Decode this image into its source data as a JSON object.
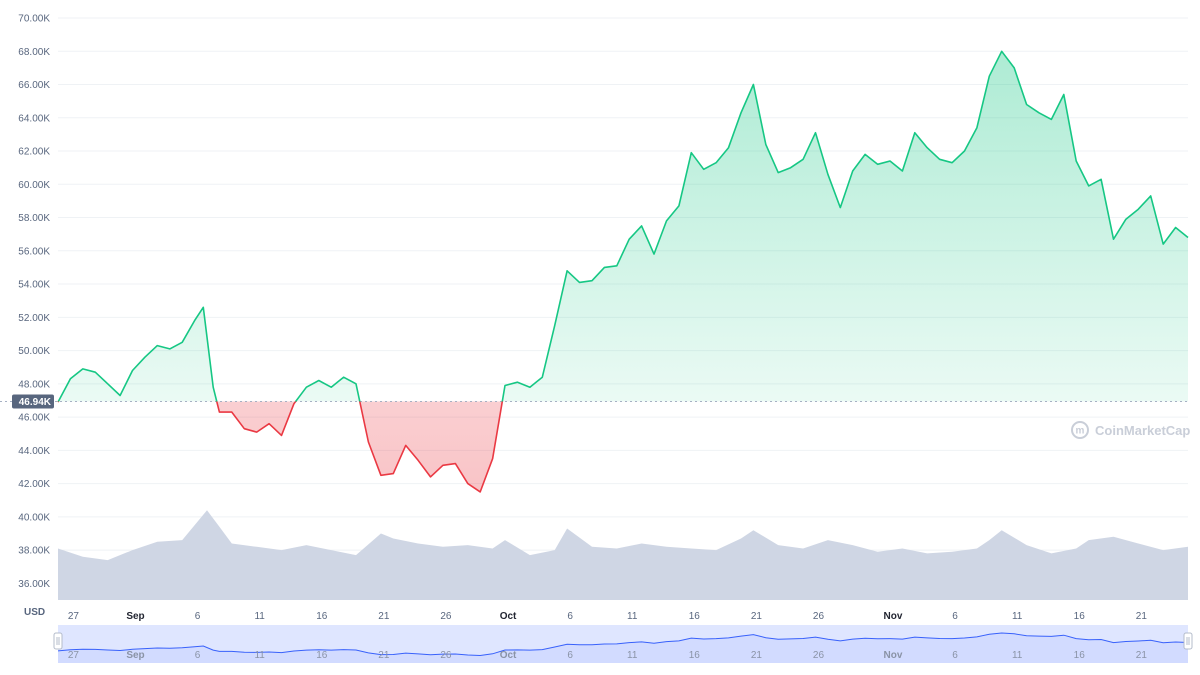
{
  "chart_data": {
    "type": "area",
    "currency_label": "USD",
    "reference_value": 46940,
    "reference_label": "46.94K",
    "watermark": "CoinMarketCap",
    "colors": {
      "up_line": "#16c784",
      "down_line": "#ea3943",
      "volume_fill": "#cfd6e4",
      "navigator_fill": "#dfe6ff",
      "navigator_line": "#3861fb"
    },
    "y_axis": {
      "min": 35000,
      "max": 70000,
      "ticks": [
        36000,
        38000,
        40000,
        42000,
        44000,
        46000,
        48000,
        50000,
        52000,
        54000,
        56000,
        58000,
        60000,
        62000,
        64000,
        66000,
        68000,
        70000
      ],
      "tick_labels": [
        "36.00K",
        "38.00K",
        "40.00K",
        "42.00K",
        "44.00K",
        "46.00K",
        "48.00K",
        "50.00K",
        "52.00K",
        "54.00K",
        "56.00K",
        "58.00K",
        "60.00K",
        "62.00K",
        "64.00K",
        "66.00K",
        "68.00K",
        "70.00K"
      ]
    },
    "x_axis": {
      "min": "2021-08-26",
      "max": "2021-11-24",
      "ticks": [
        {
          "date": "2021-08-27",
          "label": "27",
          "month": false
        },
        {
          "date": "2021-09-01",
          "label": "Sep",
          "month": true
        },
        {
          "date": "2021-09-06",
          "label": "6",
          "month": false
        },
        {
          "date": "2021-09-11",
          "label": "11",
          "month": false
        },
        {
          "date": "2021-09-16",
          "label": "16",
          "month": false
        },
        {
          "date": "2021-09-21",
          "label": "21",
          "month": false
        },
        {
          "date": "2021-09-26",
          "label": "26",
          "month": false
        },
        {
          "date": "2021-10-01",
          "label": "Oct",
          "month": true
        },
        {
          "date": "2021-10-06",
          "label": "6",
          "month": false
        },
        {
          "date": "2021-10-11",
          "label": "11",
          "month": false
        },
        {
          "date": "2021-10-16",
          "label": "16",
          "month": false
        },
        {
          "date": "2021-10-21",
          "label": "21",
          "month": false
        },
        {
          "date": "2021-10-26",
          "label": "26",
          "month": false
        },
        {
          "date": "2021-11-01",
          "label": "Nov",
          "month": true
        },
        {
          "date": "2021-11-06",
          "label": "6",
          "month": false
        },
        {
          "date": "2021-11-11",
          "label": "11",
          "month": false
        },
        {
          "date": "2021-11-16",
          "label": "16",
          "month": false
        },
        {
          "date": "2021-11-21",
          "label": "21",
          "month": false
        }
      ]
    },
    "series": [
      {
        "type": "line",
        "points": [
          [
            "2021-08-26",
            46900
          ],
          [
            "2021-08-27",
            48300
          ],
          [
            "2021-08-28",
            48900
          ],
          [
            "2021-08-29",
            48700
          ],
          [
            "2021-08-30",
            48000
          ],
          [
            "2021-08-31",
            47300
          ],
          [
            "2021-09-01",
            48800
          ],
          [
            "2021-09-02",
            49600
          ],
          [
            "2021-09-03",
            50300
          ],
          [
            "2021-09-04",
            50100
          ],
          [
            "2021-09-05",
            50500
          ],
          [
            "2021-09-06",
            51800
          ],
          [
            "2021-09-06.7",
            52600
          ],
          [
            "2021-09-07.5",
            47800
          ],
          [
            "2021-09-08",
            46300
          ],
          [
            "2021-09-09",
            46300
          ],
          [
            "2021-09-10",
            45300
          ],
          [
            "2021-09-11",
            45100
          ],
          [
            "2021-09-12",
            45600
          ],
          [
            "2021-09-13",
            44900
          ],
          [
            "2021-09-14",
            46800
          ],
          [
            "2021-09-15",
            47800
          ],
          [
            "2021-09-16",
            48200
          ],
          [
            "2021-09-17",
            47800
          ],
          [
            "2021-09-18",
            48400
          ],
          [
            "2021-09-19",
            48000
          ],
          [
            "2021-09-20",
            44500
          ],
          [
            "2021-09-21",
            42500
          ],
          [
            "2021-09-22",
            42600
          ],
          [
            "2021-09-23",
            44300
          ],
          [
            "2021-09-24",
            43400
          ],
          [
            "2021-09-25",
            42400
          ],
          [
            "2021-09-26",
            43100
          ],
          [
            "2021-09-27",
            43200
          ],
          [
            "2021-09-28",
            42000
          ],
          [
            "2021-09-29",
            41500
          ],
          [
            "2021-09-30",
            43500
          ],
          [
            "2021-10-01",
            47900
          ],
          [
            "2021-10-02",
            48100
          ],
          [
            "2021-10-03",
            47800
          ],
          [
            "2021-10-04",
            48400
          ],
          [
            "2021-10-05",
            51500
          ],
          [
            "2021-10-06",
            54800
          ],
          [
            "2021-10-07",
            54100
          ],
          [
            "2021-10-08",
            54200
          ],
          [
            "2021-10-09",
            55000
          ],
          [
            "2021-10-10",
            55100
          ],
          [
            "2021-10-11",
            56700
          ],
          [
            "2021-10-12",
            57500
          ],
          [
            "2021-10-13",
            55800
          ],
          [
            "2021-10-14",
            57800
          ],
          [
            "2021-10-15",
            58700
          ],
          [
            "2021-10-16",
            61900
          ],
          [
            "2021-10-17",
            60900
          ],
          [
            "2021-10-18",
            61300
          ],
          [
            "2021-10-19",
            62200
          ],
          [
            "2021-10-20",
            64300
          ],
          [
            "2021-10-21",
            66000
          ],
          [
            "2021-10-22",
            62400
          ],
          [
            "2021-10-23",
            60700
          ],
          [
            "2021-10-24",
            61000
          ],
          [
            "2021-10-25",
            61500
          ],
          [
            "2021-10-26",
            63100
          ],
          [
            "2021-10-27",
            60600
          ],
          [
            "2021-10-28",
            58600
          ],
          [
            "2021-10-29",
            60800
          ],
          [
            "2021-10-30",
            61800
          ],
          [
            "2021-10-31",
            61200
          ],
          [
            "2021-11-01",
            61400
          ],
          [
            "2021-11-02",
            60800
          ],
          [
            "2021-11-03",
            63100
          ],
          [
            "2021-11-04",
            62200
          ],
          [
            "2021-11-05",
            61500
          ],
          [
            "2021-11-06",
            61300
          ],
          [
            "2021-11-07",
            62000
          ],
          [
            "2021-11-08",
            63400
          ],
          [
            "2021-11-09",
            66500
          ],
          [
            "2021-11-10",
            68000
          ],
          [
            "2021-11-11",
            67000
          ],
          [
            "2021-11-12",
            64800
          ],
          [
            "2021-11-13",
            64300
          ],
          [
            "2021-11-14",
            63900
          ],
          [
            "2021-11-15",
            65400
          ],
          [
            "2021-11-16",
            61400
          ],
          [
            "2021-11-17",
            59900
          ],
          [
            "2021-11-18",
            60300
          ],
          [
            "2021-11-19",
            56700
          ],
          [
            "2021-11-20",
            57900
          ],
          [
            "2021-11-21",
            58500
          ],
          [
            "2021-11-22",
            59300
          ],
          [
            "2021-11-23",
            56400
          ],
          [
            "2021-11-24",
            57400
          ],
          [
            "2021-11-25",
            56800
          ]
        ]
      },
      {
        "type": "volume",
        "points": [
          [
            "2021-08-26",
            38100
          ],
          [
            "2021-08-28",
            37600
          ],
          [
            "2021-08-30",
            37400
          ],
          [
            "2021-09-01",
            38000
          ],
          [
            "2021-09-03",
            38500
          ],
          [
            "2021-09-05",
            38600
          ],
          [
            "2021-09-07",
            40400
          ],
          [
            "2021-09-08",
            39400
          ],
          [
            "2021-09-09",
            38400
          ],
          [
            "2021-09-11",
            38200
          ],
          [
            "2021-09-13",
            38000
          ],
          [
            "2021-09-15",
            38300
          ],
          [
            "2021-09-17",
            38000
          ],
          [
            "2021-09-19",
            37700
          ],
          [
            "2021-09-21",
            39000
          ],
          [
            "2021-09-22",
            38700
          ],
          [
            "2021-09-24",
            38400
          ],
          [
            "2021-09-26",
            38200
          ],
          [
            "2021-09-28",
            38300
          ],
          [
            "2021-09-30",
            38100
          ],
          [
            "2021-10-01",
            38600
          ],
          [
            "2021-10-03",
            37700
          ],
          [
            "2021-10-05",
            38000
          ],
          [
            "2021-10-06",
            39300
          ],
          [
            "2021-10-08",
            38200
          ],
          [
            "2021-10-10",
            38100
          ],
          [
            "2021-10-12",
            38400
          ],
          [
            "2021-10-14",
            38200
          ],
          [
            "2021-10-16",
            38100
          ],
          [
            "2021-10-18",
            38000
          ],
          [
            "2021-10-20",
            38700
          ],
          [
            "2021-10-21",
            39200
          ],
          [
            "2021-10-23",
            38300
          ],
          [
            "2021-10-25",
            38100
          ],
          [
            "2021-10-27",
            38600
          ],
          [
            "2021-10-29",
            38300
          ],
          [
            "2021-10-31",
            37900
          ],
          [
            "2021-11-02",
            38100
          ],
          [
            "2021-11-04",
            37800
          ],
          [
            "2021-11-06",
            37900
          ],
          [
            "2021-11-08",
            38100
          ],
          [
            "2021-11-09",
            38600
          ],
          [
            "2021-11-10",
            39200
          ],
          [
            "2021-11-12",
            38300
          ],
          [
            "2021-11-14",
            37800
          ],
          [
            "2021-11-16",
            38100
          ],
          [
            "2021-11-17",
            38600
          ],
          [
            "2021-11-19",
            38800
          ],
          [
            "2021-11-21",
            38400
          ],
          [
            "2021-11-23",
            38000
          ],
          [
            "2021-11-25",
            38200
          ]
        ]
      }
    ],
    "navigator": {
      "visible": true
    }
  }
}
